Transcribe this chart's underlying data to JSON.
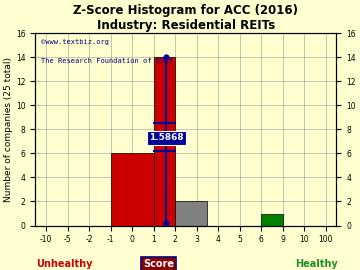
{
  "title": "Z-Score Histogram for ACC (2016)",
  "subtitle": "Industry: Residential REITs",
  "watermark1": "©www.textbiz.org",
  "watermark2": "The Research Foundation of SUNY",
  "bars": [
    {
      "x_left": -1,
      "x_right": 1,
      "height": 6,
      "color": "#cc0000"
    },
    {
      "x_left": 1,
      "x_right": 2,
      "height": 14,
      "color": "#cc0000"
    },
    {
      "x_left": 2,
      "x_right": 3.5,
      "height": 2,
      "color": "#808080"
    },
    {
      "x_left": 6,
      "x_right": 9,
      "height": 1,
      "color": "#008000"
    }
  ],
  "zscore_value": 1.5868,
  "zscore_label": "1.5868",
  "zscore_line_color": "#000099",
  "xtick_vals": [
    -10,
    -5,
    -2,
    -1,
    0,
    1,
    2,
    3,
    4,
    5,
    6,
    9,
    10,
    100
  ],
  "xtick_labels": [
    "-10",
    "-5",
    "-2",
    "-1",
    "0",
    "1",
    "2",
    "3",
    "4",
    "5",
    "6",
    "9",
    "10",
    "100"
  ],
  "yticks": [
    0,
    2,
    4,
    6,
    8,
    10,
    12,
    14,
    16
  ],
  "ylim": [
    0,
    16
  ],
  "ylabel": "Number of companies (25 total)",
  "xlabel": "Score",
  "unhealthy_label": "Unhealthy",
  "healthy_label": "Healthy",
  "unhealthy_color": "#cc0000",
  "healthy_color": "#228B22",
  "bg_color": "#FFFFD0",
  "title_fontsize": 8.5,
  "tick_fontsize": 5.5,
  "label_fontsize": 6.5,
  "watermark_color": "#000080"
}
